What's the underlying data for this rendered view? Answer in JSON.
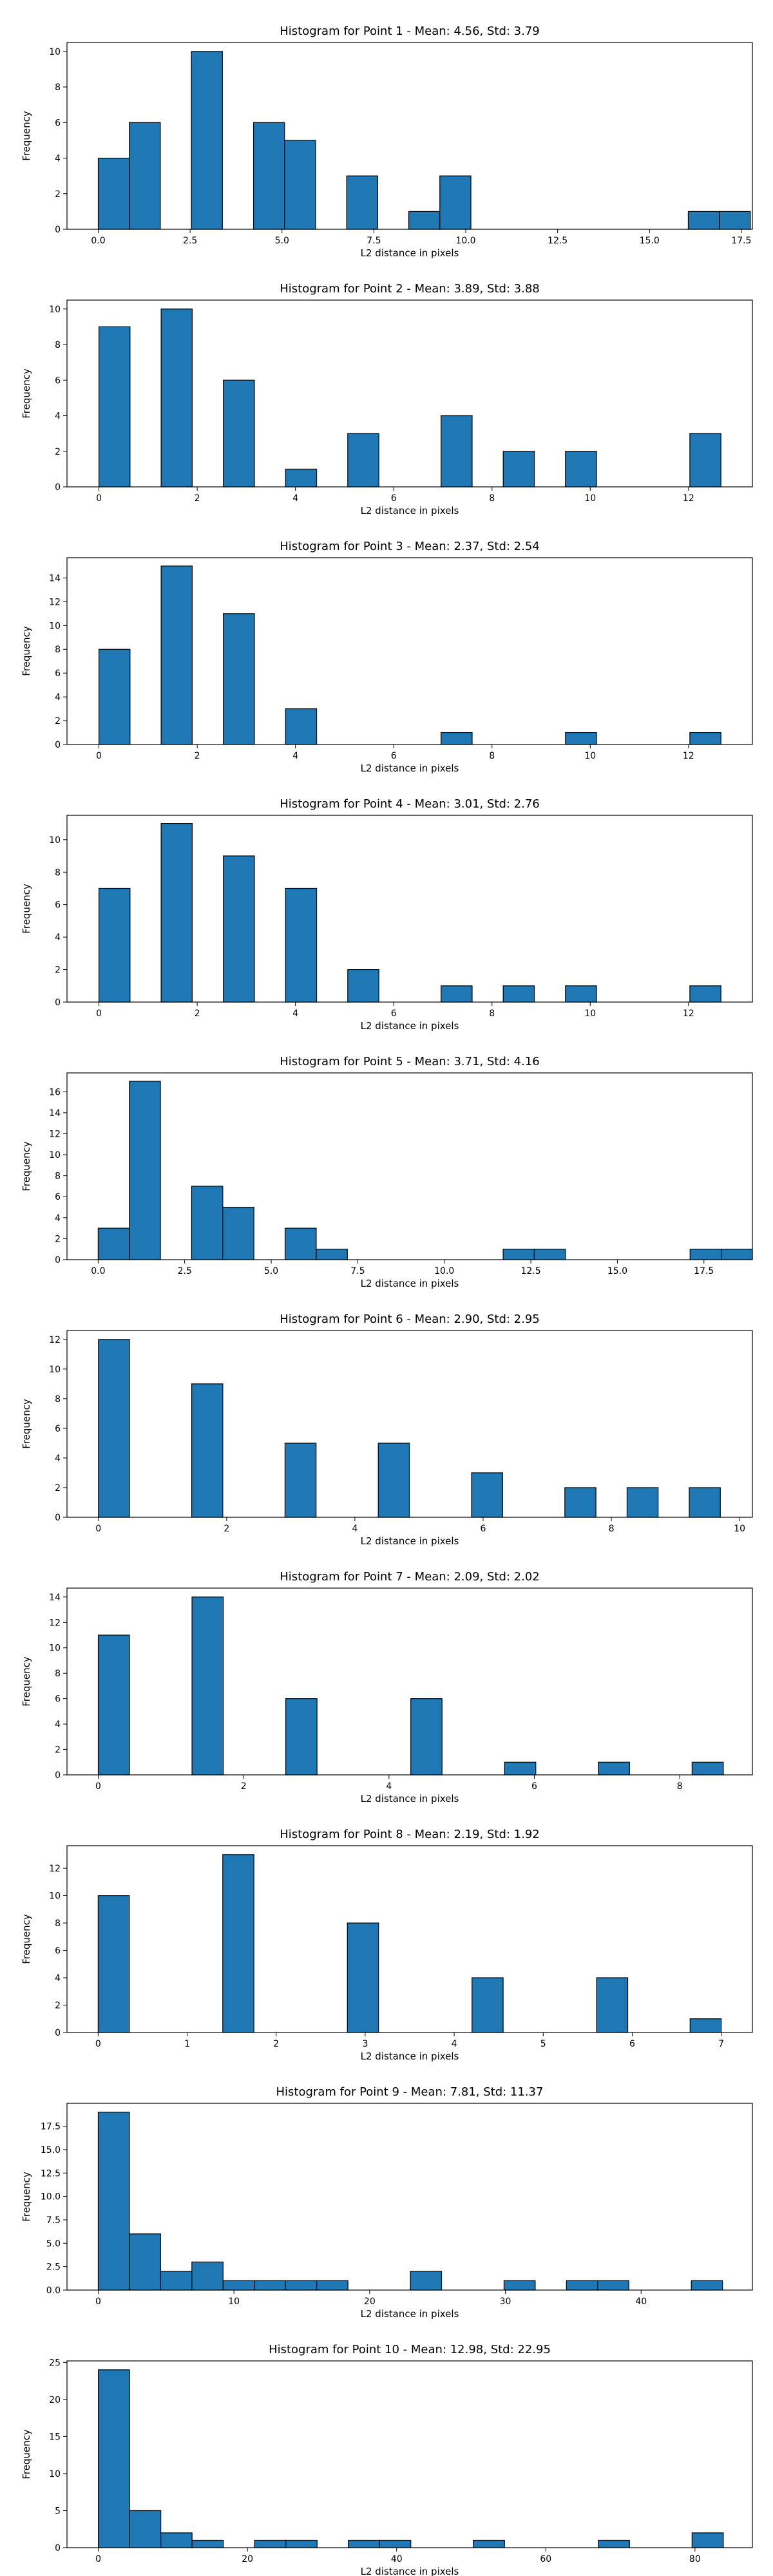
{
  "colors": {
    "bar_fill": "#1f77b4",
    "bar_edge": "#000000",
    "axis": "#000000",
    "text": "#000000"
  },
  "chart_data": [
    {
      "type": "bar",
      "title": "Histogram for Point 1 - Mean: 4.56, Std: 3.79",
      "xlabel": "L2 distance in pixels",
      "ylabel": "Frequency",
      "xlim": [
        -0.85,
        17.8
      ],
      "ylim": [
        0,
        10.5
      ],
      "xticks": [
        0.0,
        2.5,
        5.0,
        7.5,
        10.0,
        12.5,
        15.0,
        17.5
      ],
      "xtick_labels": [
        "0.0",
        "2.5",
        "5.0",
        "7.5",
        "10.0",
        "12.5",
        "15.0",
        "17.5"
      ],
      "yticks": [
        0,
        2,
        4,
        6,
        8,
        10
      ],
      "ytick_labels": [
        "0",
        "2",
        "4",
        "6",
        "8",
        "10"
      ],
      "bin_start": 0,
      "bin_width": 0.845,
      "counts": [
        4,
        6,
        0,
        10,
        0,
        6,
        5,
        0,
        3,
        0,
        1,
        3,
        0,
        0,
        0,
        0,
        0,
        0,
        0,
        1,
        1
      ]
    },
    {
      "type": "bar",
      "title": "Histogram for Point 2 - Mean: 3.89, Std: 3.88",
      "xlabel": "L2 distance in pixels",
      "ylabel": "Frequency",
      "xlim": [
        -0.65,
        13.3
      ],
      "ylim": [
        0,
        10.5
      ],
      "xticks": [
        0,
        2,
        4,
        6,
        8,
        10,
        12
      ],
      "xtick_labels": [
        "0",
        "2",
        "4",
        "6",
        "8",
        "10",
        "12"
      ],
      "yticks": [
        0,
        2,
        4,
        6,
        8,
        10
      ],
      "ytick_labels": [
        "0",
        "2",
        "4",
        "6",
        "8",
        "10"
      ],
      "bin_start": 0,
      "bin_width": 0.633,
      "counts": [
        9,
        0,
        10,
        0,
        6,
        0,
        1,
        0,
        3,
        0,
        0,
        4,
        0,
        2,
        0,
        2,
        0,
        0,
        0,
        3
      ]
    },
    {
      "type": "bar",
      "title": "Histogram for Point 3 - Mean: 2.37, Std: 2.54",
      "xlabel": "L2 distance in pixels",
      "ylabel": "Frequency",
      "xlim": [
        -0.65,
        13.3
      ],
      "ylim": [
        0,
        15.7
      ],
      "xticks": [
        0,
        2,
        4,
        6,
        8,
        10,
        12
      ],
      "xtick_labels": [
        "0",
        "2",
        "4",
        "6",
        "8",
        "10",
        "12"
      ],
      "yticks": [
        0,
        2,
        4,
        6,
        8,
        10,
        12,
        14
      ],
      "ytick_labels": [
        "0",
        "2",
        "4",
        "6",
        "8",
        "10",
        "12",
        "14"
      ],
      "bin_start": 0,
      "bin_width": 0.633,
      "counts": [
        8,
        0,
        15,
        0,
        11,
        0,
        3,
        0,
        0,
        0,
        0,
        1,
        0,
        0,
        0,
        1,
        0,
        0,
        0,
        1
      ]
    },
    {
      "type": "bar",
      "title": "Histogram for Point 4 - Mean: 3.01, Std: 2.76",
      "xlabel": "L2 distance in pixels",
      "ylabel": "Frequency",
      "xlim": [
        -0.65,
        13.3
      ],
      "ylim": [
        0,
        11.5
      ],
      "xticks": [
        0,
        2,
        4,
        6,
        8,
        10,
        12
      ],
      "xtick_labels": [
        "0",
        "2",
        "4",
        "6",
        "8",
        "10",
        "12"
      ],
      "yticks": [
        0,
        2,
        4,
        6,
        8,
        10
      ],
      "ytick_labels": [
        "0",
        "2",
        "4",
        "6",
        "8",
        "10"
      ],
      "bin_start": 0,
      "bin_width": 0.633,
      "counts": [
        7,
        0,
        11,
        0,
        9,
        0,
        7,
        0,
        2,
        0,
        0,
        1,
        0,
        1,
        0,
        1,
        0,
        0,
        0,
        1
      ]
    },
    {
      "type": "bar",
      "title": "Histogram for Point 5 - Mean: 3.71, Std: 4.16",
      "xlabel": "L2 distance in pixels",
      "ylabel": "Frequency",
      "xlim": [
        -0.9,
        18.9
      ],
      "ylim": [
        0,
        17.8
      ],
      "xticks": [
        0.0,
        2.5,
        5.0,
        7.5,
        10.0,
        12.5,
        15.0,
        17.5
      ],
      "xtick_labels": [
        "0.0",
        "2.5",
        "5.0",
        "7.5",
        "10.0",
        "12.5",
        "15.0",
        "17.5"
      ],
      "yticks": [
        0,
        2,
        4,
        6,
        8,
        10,
        12,
        14,
        16
      ],
      "ytick_labels": [
        "0",
        "2",
        "4",
        "6",
        "8",
        "10",
        "12",
        "14",
        "16"
      ],
      "bin_start": 0,
      "bin_width": 0.9,
      "counts": [
        3,
        17,
        0,
        7,
        5,
        0,
        3,
        1,
        0,
        0,
        0,
        0,
        0,
        1,
        1,
        0,
        0,
        0,
        0,
        1,
        1
      ]
    },
    {
      "type": "bar",
      "title": "Histogram for Point 6 - Mean: 2.90, Std: 2.95",
      "xlabel": "L2 distance in pixels",
      "ylabel": "Frequency",
      "xlim": [
        -0.49,
        10.2
      ],
      "ylim": [
        0,
        12.6
      ],
      "xticks": [
        0,
        2,
        4,
        6,
        8,
        10
      ],
      "xtick_labels": [
        "0",
        "2",
        "4",
        "6",
        "8",
        "10"
      ],
      "yticks": [
        0,
        2,
        4,
        6,
        8,
        10,
        12
      ],
      "ytick_labels": [
        "0",
        "2",
        "4",
        "6",
        "8",
        "10",
        "12"
      ],
      "bin_start": 0,
      "bin_width": 0.485,
      "counts": [
        12,
        0,
        0,
        9,
        0,
        0,
        5,
        0,
        0,
        5,
        0,
        0,
        3,
        0,
        0,
        2,
        0,
        2,
        0,
        2
      ]
    },
    {
      "type": "bar",
      "title": "Histogram for Point 7 - Mean: 2.09, Std: 2.02",
      "xlabel": "L2 distance in pixels",
      "ylabel": "Frequency",
      "xlim": [
        -0.43,
        9.0
      ],
      "ylim": [
        0,
        14.7
      ],
      "xticks": [
        0,
        2,
        4,
        6,
        8
      ],
      "xtick_labels": [
        "0",
        "2",
        "4",
        "6",
        "8"
      ],
      "yticks": [
        0,
        2,
        4,
        6,
        8,
        10,
        12,
        14
      ],
      "ytick_labels": [
        "0",
        "2",
        "4",
        "6",
        "8",
        "10",
        "12",
        "14"
      ],
      "bin_start": 0,
      "bin_width": 0.43,
      "counts": [
        11,
        0,
        0,
        14,
        0,
        0,
        6,
        0,
        0,
        0,
        6,
        0,
        0,
        1,
        0,
        0,
        1,
        0,
        0,
        1
      ]
    },
    {
      "type": "bar",
      "title": "Histogram for Point 8 - Mean: 2.19, Std: 1.92",
      "xlabel": "L2 distance in pixels",
      "ylabel": "Frequency",
      "xlim": [
        -0.35,
        7.35
      ],
      "ylim": [
        0,
        13.65
      ],
      "xticks": [
        0,
        1,
        2,
        3,
        4,
        5,
        6,
        7
      ],
      "xtick_labels": [
        "0",
        "1",
        "2",
        "3",
        "4",
        "5",
        "6",
        "7"
      ],
      "yticks": [
        0,
        2,
        4,
        6,
        8,
        10,
        12
      ],
      "ytick_labels": [
        "0",
        "2",
        "4",
        "6",
        "8",
        "10",
        "12"
      ],
      "bin_start": 0,
      "bin_width": 0.35,
      "counts": [
        10,
        0,
        0,
        0,
        13,
        0,
        0,
        0,
        8,
        0,
        0,
        0,
        4,
        0,
        0,
        0,
        4,
        0,
        0,
        1
      ]
    },
    {
      "type": "bar",
      "title": "Histogram for Point 9 - Mean: 7.81, Std: 11.37",
      "xlabel": "L2 distance in pixels",
      "ylabel": "Frequency",
      "xlim": [
        -2.3,
        48.2
      ],
      "ylim": [
        0,
        19.95
      ],
      "xticks": [
        0,
        10,
        20,
        30,
        40
      ],
      "xtick_labels": [
        "0",
        "10",
        "20",
        "30",
        "40"
      ],
      "yticks": [
        0.0,
        2.5,
        5.0,
        7.5,
        10.0,
        12.5,
        15.0,
        17.5
      ],
      "ytick_labels": [
        "0.0",
        "2.5",
        "5.0",
        "7.5",
        "10.0",
        "12.5",
        "15.0",
        "17.5"
      ],
      "bin_start": 0,
      "bin_width": 2.3,
      "counts": [
        19,
        6,
        2,
        3,
        1,
        1,
        1,
        1,
        0,
        0,
        2,
        0,
        0,
        1,
        0,
        1,
        1,
        0,
        0,
        1
      ]
    },
    {
      "type": "bar",
      "title": "Histogram for Point 10 - Mean: 12.98, Std: 22.95",
      "xlabel": "L2 distance in pixels",
      "ylabel": "Frequency",
      "xlim": [
        -4.2,
        87.7
      ],
      "ylim": [
        0,
        25.2
      ],
      "xticks": [
        0,
        20,
        40,
        60,
        80
      ],
      "xtick_labels": [
        "0",
        "20",
        "40",
        "60",
        "80"
      ],
      "yticks": [
        0,
        5,
        10,
        15,
        20,
        25
      ],
      "ytick_labels": [
        "0",
        "5",
        "10",
        "15",
        "20",
        "25"
      ],
      "bin_start": 0,
      "bin_width": 4.19,
      "counts": [
        24,
        5,
        2,
        1,
        0,
        1,
        1,
        0,
        1,
        1,
        0,
        0,
        1,
        0,
        0,
        0,
        1,
        0,
        0,
        2
      ]
    }
  ]
}
